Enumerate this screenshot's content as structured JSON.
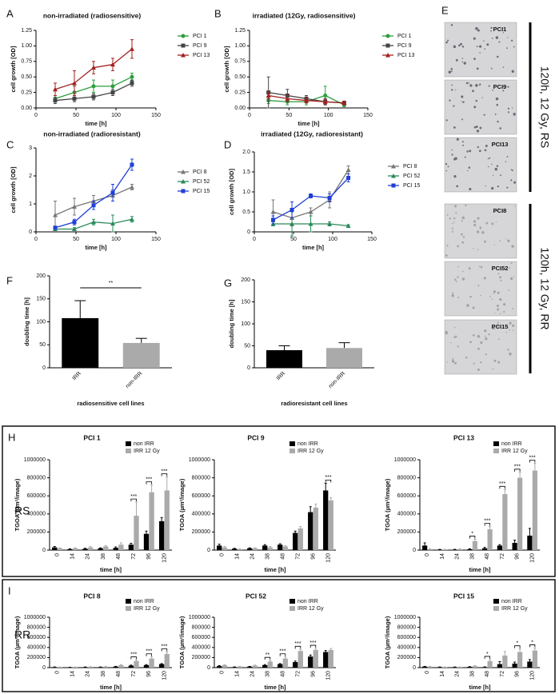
{
  "labels": [
    "E",
    "H",
    "I",
    "RS",
    "RR"
  ],
  "panel_e": {
    "images": [
      "PCI1",
      "PCI9",
      "PCI13",
      "PCI8",
      "PCI52",
      "PCI15"
    ],
    "captions": [
      "120h, 12 Gy, RS",
      "120h, 12 Gy, RR"
    ]
  },
  "chart_data": [
    {
      "type": "line",
      "panel": "A",
      "title": "non-irradiated (radiosensitive)",
      "x_label": "time [h]",
      "y_label": "cell growth [OD]",
      "x": [
        24,
        48,
        72,
        96,
        120
      ],
      "xlim": [
        0,
        150
      ],
      "xticks": [
        0,
        50,
        100,
        150
      ],
      "ylim": [
        0,
        1.25
      ],
      "yticks": [
        {
          "value": 0,
          "label": "0.00"
        },
        0.25,
        {
          "value": 0.5,
          "label": "0.50"
        },
        0.75,
        {
          "value": 1,
          "label": "1.00"
        },
        1.25
      ],
      "series": [
        {
          "name": "PCI 1",
          "color": "#2e9e3e",
          "marker": "circle",
          "values": [
            0.15,
            0.25,
            0.35,
            0.35,
            0.5
          ],
          "errors": [
            0.05,
            0.1,
            0.1,
            0.1,
            0.06
          ]
        },
        {
          "name": "PCI 9",
          "color": "#444444",
          "marker": "square",
          "values": [
            0.12,
            0.15,
            0.18,
            0.25,
            0.4
          ],
          "errors": [
            0.05,
            0.05,
            0.05,
            0.05,
            0.05
          ]
        },
        {
          "name": "PCI 13",
          "color": "#a31f1f",
          "marker": "triangle",
          "values": [
            0.3,
            0.4,
            0.65,
            0.7,
            0.95
          ],
          "errors": [
            0.1,
            0.2,
            0.1,
            0.1,
            0.15
          ]
        }
      ]
    },
    {
      "type": "line",
      "panel": "B",
      "title": "irradiated (12Gy, radiosensitive)",
      "x_label": "time [h]",
      "y_label": "cell growth [OD]",
      "x": [
        24,
        48,
        72,
        96,
        120
      ],
      "xlim": [
        0,
        150
      ],
      "xticks": [
        0,
        50,
        100,
        150
      ],
      "ylim": [
        0,
        1.25
      ],
      "yticks": [
        {
          "value": 0,
          "label": "0.00"
        },
        0.25,
        {
          "value": 0.5,
          "label": "0.50"
        },
        0.75,
        {
          "value": 1,
          "label": "1.00"
        },
        1.25
      ],
      "series": [
        {
          "name": "PCI 1",
          "color": "#2e9e3e",
          "marker": "circle",
          "values": [
            0.12,
            0.1,
            0.1,
            0.2,
            0.05
          ],
          "errors": [
            0.05,
            0.05,
            0.05,
            0.15,
            0.03
          ]
        },
        {
          "name": "PCI 9",
          "color": "#444444",
          "marker": "square",
          "values": [
            0.25,
            0.2,
            0.15,
            0.1,
            0.08
          ],
          "errors": [
            0.25,
            0.1,
            0.05,
            0.05,
            0.03
          ]
        },
        {
          "name": "PCI 13",
          "color": "#a31f1f",
          "marker": "triangle",
          "values": [
            0.2,
            0.15,
            0.12,
            0.1,
            0.08
          ],
          "errors": [
            0.05,
            0.05,
            0.04,
            0.04,
            0.03
          ]
        }
      ]
    },
    {
      "type": "line",
      "panel": "C",
      "title": "non-irradiated (radioresistant)",
      "x_label": "time [h]",
      "y_label": "cell growth [OD]",
      "x": [
        24,
        48,
        72,
        96,
        120
      ],
      "xlim": [
        0,
        150
      ],
      "xticks": [
        0,
        50,
        100,
        150
      ],
      "ylim": [
        0,
        3
      ],
      "yticks": [
        0,
        1,
        2,
        3
      ],
      "series": [
        {
          "name": "PCI 8",
          "color": "#777777",
          "marker": "triangle",
          "values": [
            0.6,
            0.9,
            1.1,
            1.3,
            1.6
          ],
          "errors": [
            0.5,
            0.3,
            0.2,
            0.2,
            0.1
          ]
        },
        {
          "name": "PCI 52",
          "color": "#2a8a5a",
          "marker": "triangle",
          "values": [
            0.1,
            0.1,
            0.35,
            0.3,
            0.45
          ],
          "errors": [
            0.05,
            0.05,
            0.1,
            0.3,
            0.1
          ]
        },
        {
          "name": "PCI 15",
          "color": "#1f3fd6",
          "marker": "square",
          "values": [
            0.15,
            0.35,
            0.95,
            1.4,
            2.4
          ],
          "errors": [
            0.05,
            0.1,
            0.15,
            0.3,
            0.2
          ]
        }
      ]
    },
    {
      "type": "line",
      "panel": "D",
      "title": "irradiated (12Gy, radioresistant)",
      "x_label": "time [h]",
      "y_label": "cell growth [OD]",
      "x": [
        24,
        48,
        72,
        96,
        120
      ],
      "xlim": [
        0,
        150
      ],
      "xticks": [
        0,
        50,
        100,
        150
      ],
      "ylim": [
        0,
        2
      ],
      "yticks": [
        0,
        0.5,
        {
          "value": 1,
          "label": "1.0"
        },
        1.5,
        {
          "value": 2,
          "label": "2.0"
        }
      ],
      "series": [
        {
          "name": "PCI 8",
          "color": "#777777",
          "marker": "triangle",
          "values": [
            0.5,
            0.35,
            0.5,
            0.8,
            1.55
          ],
          "errors": [
            0.3,
            0.2,
            0.1,
            0.2,
            0.1
          ]
        },
        {
          "name": "PCI 52",
          "color": "#2a8a5a",
          "marker": "triangle",
          "values": [
            0.2,
            0.2,
            0.2,
            0.2,
            0.15
          ],
          "errors": [
            0.05,
            0.3,
            0.2,
            0.05,
            0.03
          ]
        },
        {
          "name": "PCI 15",
          "color": "#1f3fd6",
          "marker": "square",
          "values": [
            0.3,
            0.55,
            0.9,
            0.85,
            1.35
          ],
          "errors": [
            0.1,
            0.2,
            0.05,
            0.1,
            0.1
          ]
        }
      ]
    },
    {
      "type": "bar",
      "panel": "F",
      "x_label": "radiosensitive cell lines",
      "y_label": "doubling time [h]",
      "categories": [
        "IRR",
        "non-IRR"
      ],
      "values": [
        108,
        54
      ],
      "errors": [
        38,
        10
      ],
      "colors": [
        "#000000",
        "#aaaaaa"
      ],
      "ylim": [
        0,
        200
      ],
      "yticks": [
        0,
        50,
        100,
        150,
        200
      ],
      "annotations": [
        {
          "text": "**"
        }
      ]
    },
    {
      "type": "bar",
      "panel": "G",
      "x_label": "radioresistant cell lines",
      "y_label": "doubling time [h]",
      "categories": [
        "IRR",
        "non-IRR"
      ],
      "values": [
        40,
        45
      ],
      "errors": [
        10,
        12
      ],
      "colors": [
        "#000000",
        "#aaaaaa"
      ],
      "ylim": [
        0,
        200
      ],
      "yticks": [
        0,
        50,
        100,
        150,
        200
      ]
    },
    {
      "type": "bar",
      "title": "PCI 1",
      "x_label": "time [h]",
      "y_label": "TGOA (µm²/image)",
      "categories": [
        "0",
        "14",
        "24",
        "38",
        "48",
        "72",
        "96",
        "120"
      ],
      "ylim": [
        0,
        1000000
      ],
      "yticks": [
        0,
        200000,
        400000,
        600000,
        800000,
        1000000
      ],
      "series": [
        {
          "name": "non IRR",
          "color": "#000000",
          "values": [
            30000,
            10000,
            15000,
            20000,
            25000,
            60000,
            180000,
            320000
          ],
          "errors": [
            10000,
            5000,
            5000,
            5000,
            10000,
            15000,
            30000,
            40000
          ]
        },
        {
          "name": "IRR 12 Gy",
          "color": "#aaaaaa",
          "values": [
            20000,
            20000,
            30000,
            40000,
            60000,
            380000,
            640000,
            660000
          ],
          "errors": [
            5000,
            5000,
            10000,
            10000,
            20000,
            150000,
            80000,
            150000
          ]
        }
      ],
      "annotations": [
        {
          "x": "72",
          "text": "***"
        },
        {
          "x": "96",
          "text": "***"
        },
        {
          "x": "120",
          "text": "***"
        }
      ]
    },
    {
      "type": "bar",
      "title": "PCI 9",
      "x_label": "time [h]",
      "y_label": "TGOA (µm²/image)",
      "categories": [
        "0",
        "14",
        "24",
        "38",
        "48",
        "72",
        "96",
        "120"
      ],
      "ylim": [
        0,
        1000000
      ],
      "yticks": [
        0,
        200000,
        400000,
        600000,
        800000,
        1000000
      ],
      "series": [
        {
          "name": "non IRR",
          "color": "#000000",
          "values": [
            50000,
            15000,
            20000,
            50000,
            60000,
            190000,
            420000,
            660000
          ],
          "errors": [
            15000,
            5000,
            5000,
            10000,
            10000,
            20000,
            60000,
            80000
          ]
        },
        {
          "name": "IRR 12 Gy",
          "color": "#aaaaaa",
          "values": [
            30000,
            10000,
            20000,
            30000,
            40000,
            240000,
            470000,
            550000
          ],
          "errors": [
            10000,
            5000,
            5000,
            10000,
            10000,
            20000,
            40000,
            30000
          ]
        }
      ],
      "annotations": [
        {
          "x": "120",
          "text": "***"
        }
      ]
    },
    {
      "type": "bar",
      "title": "PCI 13",
      "x_label": "time [h]",
      "y_label": "TGOA (µm²/image)",
      "categories": [
        "0",
        "14",
        "24",
        "38",
        "48",
        "72",
        "96",
        "120"
      ],
      "ylim": [
        0,
        1000000
      ],
      "yticks": [
        0,
        200000,
        400000,
        600000,
        800000,
        1000000
      ],
      "series": [
        {
          "name": "non IRR",
          "color": "#000000",
          "values": [
            50000,
            5000,
            5000,
            10000,
            20000,
            50000,
            80000,
            160000
          ],
          "errors": [
            30000,
            3000,
            3000,
            5000,
            10000,
            10000,
            30000,
            80000
          ]
        },
        {
          "name": "IRR 12 Gy",
          "color": "#aaaaaa",
          "values": [
            10000,
            5000,
            10000,
            100000,
            230000,
            620000,
            800000,
            880000
          ],
          "errors": [
            5000,
            3000,
            5000,
            20000,
            30000,
            50000,
            60000,
            80000
          ]
        }
      ],
      "annotations": [
        {
          "x": "38",
          "text": "*"
        },
        {
          "x": "48",
          "text": "***"
        },
        {
          "x": "72",
          "text": "***"
        },
        {
          "x": "96",
          "text": "***"
        },
        {
          "x": "120",
          "text": "***"
        }
      ]
    },
    {
      "type": "bar",
      "title": "PCI 8",
      "x_label": "time [h]",
      "y_label": "TGOA (µm²/image)",
      "categories": [
        "0",
        "14",
        "24",
        "38",
        "48",
        "72",
        "96",
        "120"
      ],
      "ylim": [
        0,
        1000000
      ],
      "yticks": [
        0,
        200000,
        400000,
        600000,
        800000,
        1000000
      ],
      "series": [
        {
          "name": "non IRR",
          "color": "#000000",
          "values": [
            10000,
            5000,
            10000,
            10000,
            20000,
            40000,
            50000,
            70000
          ],
          "errors": [
            3000,
            3000,
            3000,
            3000,
            5000,
            10000,
            10000,
            10000
          ]
        },
        {
          "name": "IRR 12 Gy",
          "color": "#aaaaaa",
          "values": [
            10000,
            10000,
            15000,
            20000,
            50000,
            130000,
            180000,
            270000
          ],
          "errors": [
            3000,
            3000,
            5000,
            5000,
            10000,
            20000,
            30000,
            40000
          ]
        }
      ],
      "annotations": [
        {
          "x": "72",
          "text": "***"
        },
        {
          "x": "96",
          "text": "***"
        },
        {
          "x": "120",
          "text": "***"
        }
      ]
    },
    {
      "type": "bar",
      "title": "PCI 52",
      "x_label": "time [h]",
      "y_label": "TGOA (µm²/image)",
      "categories": [
        "0",
        "14",
        "24",
        "38",
        "48",
        "72",
        "96",
        "120"
      ],
      "ylim": [
        0,
        1000000
      ],
      "yticks": [
        0,
        200000,
        400000,
        600000,
        800000,
        1000000
      ],
      "series": [
        {
          "name": "non IRR",
          "color": "#000000",
          "values": [
            30000,
            10000,
            20000,
            50000,
            70000,
            110000,
            220000,
            310000
          ],
          "errors": [
            10000,
            5000,
            5000,
            10000,
            10000,
            20000,
            30000,
            30000
          ]
        },
        {
          "name": "IRR 12 Gy",
          "color": "#aaaaaa",
          "values": [
            50000,
            20000,
            40000,
            120000,
            180000,
            330000,
            350000,
            350000
          ],
          "errors": [
            10000,
            5000,
            10000,
            20000,
            30000,
            30000,
            30000,
            30000
          ]
        }
      ],
      "annotations": [
        {
          "x": "38",
          "text": "**"
        },
        {
          "x": "48",
          "text": "***"
        },
        {
          "x": "72",
          "text": "***"
        },
        {
          "x": "96",
          "text": "***"
        }
      ]
    },
    {
      "type": "bar",
      "title": "PCI 15",
      "x_label": "time [h]",
      "y_label": "TGOA (µm²/image)",
      "categories": [
        "0",
        "14",
        "24",
        "38",
        "48",
        "72",
        "96",
        "120"
      ],
      "ylim": [
        0,
        1000000
      ],
      "yticks": [
        0,
        200000,
        400000,
        600000,
        800000,
        1000000
      ],
      "series": [
        {
          "name": "non IRR",
          "color": "#000000",
          "values": [
            20000,
            10000,
            10000,
            15000,
            10000,
            70000,
            80000,
            120000
          ],
          "errors": [
            5000,
            3000,
            3000,
            5000,
            5000,
            50000,
            30000,
            40000
          ]
        },
        {
          "name": "IRR 12 Gy",
          "color": "#aaaaaa",
          "values": [
            20000,
            10000,
            10000,
            30000,
            130000,
            240000,
            310000,
            340000
          ],
          "errors": [
            5000,
            3000,
            3000,
            10000,
            30000,
            80000,
            60000,
            50000
          ]
        }
      ],
      "annotations": [
        {
          "x": "48",
          "text": "*"
        },
        {
          "x": "96",
          "text": "*"
        },
        {
          "x": "120",
          "text": "*"
        }
      ]
    }
  ]
}
